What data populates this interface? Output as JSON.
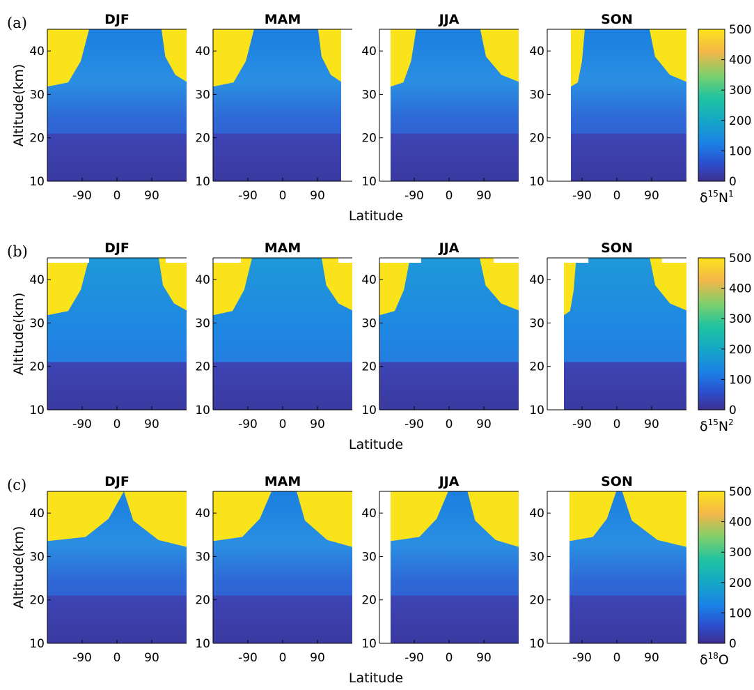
{
  "figure": {
    "colormap": [
      "#3e2f8f",
      "#2b4fd0",
      "#1a82e6",
      "#15a7c6",
      "#20c3a0",
      "#7fcf6a",
      "#f3b64a",
      "#fbe31b"
    ],
    "rows": [
      {
        "letter": "(a)",
        "ylabel": "Altitude(km)",
        "xlabel": "Latitude",
        "colorbar": {
          "ticks": [
            "500",
            "400",
            "300",
            "200",
            "100",
            "0"
          ],
          "label_base": "δ",
          "label_sup": "15",
          "label_main": "N",
          "label_sup2": "1"
        },
        "panels": [
          {
            "title": "DJF",
            "yticks": [
              "40",
              "30",
              "20",
              "10"
            ],
            "xticks": [
              "-90",
              "0",
              "90"
            ]
          },
          {
            "title": "MAM",
            "yticks": [
              "40",
              "30",
              "20",
              "10"
            ],
            "xticks": [
              "-90",
              "0",
              "90"
            ]
          },
          {
            "title": "JJA",
            "yticks": [
              "40",
              "30",
              "20",
              "10"
            ],
            "xticks": [
              "-90",
              "0",
              "90"
            ]
          },
          {
            "title": "SON",
            "yticks": [
              "40",
              "30",
              "20",
              "10"
            ],
            "xticks": [
              "-90",
              "0",
              "90"
            ]
          }
        ]
      },
      {
        "letter": "(b)",
        "ylabel": "Altitude(km)",
        "xlabel": "Latitude",
        "colorbar": {
          "ticks": [
            "500",
            "400",
            "300",
            "200",
            "100",
            "0"
          ],
          "label_base": "δ",
          "label_sup": "15",
          "label_main": "N",
          "label_sup2": "2"
        },
        "panels": [
          {
            "title": "DJF",
            "yticks": [
              "40",
              "30",
              "20",
              "10"
            ],
            "xticks": [
              "-90",
              "0",
              "90"
            ]
          },
          {
            "title": "MAM",
            "yticks": [
              "40",
              "30",
              "20",
              "10"
            ],
            "xticks": [
              "-90",
              "0",
              "90"
            ]
          },
          {
            "title": "JJA",
            "yticks": [
              "40",
              "30",
              "20",
              "10"
            ],
            "xticks": [
              "-90",
              "0",
              "90"
            ]
          },
          {
            "title": "SON",
            "yticks": [
              "40",
              "30",
              "20",
              "10"
            ],
            "xticks": [
              "-90",
              "0",
              "90"
            ]
          }
        ]
      },
      {
        "letter": "(c)",
        "ylabel": "Altitude(km)",
        "xlabel": "Latitude",
        "colorbar": {
          "ticks": [
            "500",
            "400",
            "300",
            "200",
            "100",
            "0"
          ],
          "label_base": "δ",
          "label_sup": "18",
          "label_main": "O",
          "label_sup2": ""
        },
        "panels": [
          {
            "title": "DJF",
            "yticks": [
              "40",
              "30",
              "20",
              "10"
            ],
            "xticks": [
              "-90",
              "0",
              "90"
            ]
          },
          {
            "title": "MAM",
            "yticks": [
              "40",
              "30",
              "20",
              "10"
            ],
            "xticks": [
              "-90",
              "0",
              "90"
            ]
          },
          {
            "title": "JJA",
            "yticks": [
              "40",
              "30",
              "20",
              "10"
            ],
            "xticks": [
              "-90",
              "0",
              "90"
            ]
          },
          {
            "title": "SON",
            "yticks": [
              "40",
              "30",
              "20",
              "10"
            ],
            "xticks": [
              "-90",
              "0",
              "90"
            ]
          }
        ]
      }
    ]
  },
  "chart_data": [
    {
      "type": "heatmap",
      "panel": "(a) DJF",
      "title": "DJF",
      "ylabel": "Altitude(km)",
      "xlabel": "Latitude",
      "ylim": [
        10,
        45
      ],
      "xticks": [
        -90,
        0,
        90
      ],
      "yticks": [
        10,
        20,
        30,
        40
      ],
      "colorbar_range": [
        0,
        500
      ],
      "colorbar_label": "δ15N1"
    },
    {
      "type": "heatmap",
      "panel": "(a) MAM",
      "title": "MAM",
      "ylim": [
        10,
        45
      ],
      "xticks": [
        -90,
        0,
        90
      ],
      "yticks": [
        10,
        20,
        30,
        40
      ],
      "colorbar_range": [
        0,
        500
      ],
      "colorbar_label": "δ15N1"
    },
    {
      "type": "heatmap",
      "panel": "(a) JJA",
      "title": "JJA",
      "ylim": [
        10,
        45
      ],
      "xticks": [
        -90,
        0,
        90
      ],
      "yticks": [
        10,
        20,
        30,
        40
      ],
      "colorbar_range": [
        0,
        500
      ],
      "colorbar_label": "δ15N1"
    },
    {
      "type": "heatmap",
      "panel": "(a) SON",
      "title": "SON",
      "ylim": [
        10,
        45
      ],
      "xticks": [
        -90,
        0,
        90
      ],
      "yticks": [
        10,
        20,
        30,
        40
      ],
      "colorbar_range": [
        0,
        500
      ],
      "colorbar_label": "δ15N1"
    },
    {
      "type": "heatmap",
      "panel": "(b) DJF",
      "title": "DJF",
      "ylabel": "Altitude(km)",
      "xlabel": "Latitude",
      "ylim": [
        10,
        45
      ],
      "xticks": [
        -90,
        0,
        90
      ],
      "yticks": [
        10,
        20,
        30,
        40
      ],
      "colorbar_range": [
        0,
        500
      ],
      "colorbar_label": "δ15N2"
    },
    {
      "type": "heatmap",
      "panel": "(b) MAM",
      "title": "MAM",
      "ylim": [
        10,
        45
      ],
      "xticks": [
        -90,
        0,
        90
      ],
      "yticks": [
        10,
        20,
        30,
        40
      ],
      "colorbar_range": [
        0,
        500
      ],
      "colorbar_label": "δ15N2"
    },
    {
      "type": "heatmap",
      "panel": "(b) JJA",
      "title": "JJA",
      "ylim": [
        10,
        45
      ],
      "xticks": [
        -90,
        0,
        90
      ],
      "yticks": [
        10,
        20,
        30,
        40
      ],
      "colorbar_range": [
        0,
        500
      ],
      "colorbar_label": "δ15N2"
    },
    {
      "type": "heatmap",
      "panel": "(b) SON",
      "title": "SON",
      "ylim": [
        10,
        45
      ],
      "xticks": [
        -90,
        0,
        90
      ],
      "yticks": [
        10,
        20,
        30,
        40
      ],
      "colorbar_range": [
        0,
        500
      ],
      "colorbar_label": "δ15N2"
    },
    {
      "type": "heatmap",
      "panel": "(c) DJF",
      "title": "DJF",
      "ylabel": "Altitude(km)",
      "xlabel": "Latitude",
      "ylim": [
        10,
        45
      ],
      "xticks": [
        -90,
        0,
        90
      ],
      "yticks": [
        10,
        20,
        30,
        40
      ],
      "colorbar_range": [
        0,
        500
      ],
      "colorbar_label": "δ18O"
    },
    {
      "type": "heatmap",
      "panel": "(c) MAM",
      "title": "MAM",
      "ylim": [
        10,
        45
      ],
      "xticks": [
        -90,
        0,
        90
      ],
      "yticks": [
        10,
        20,
        30,
        40
      ],
      "colorbar_range": [
        0,
        500
      ],
      "colorbar_label": "δ18O"
    },
    {
      "type": "heatmap",
      "panel": "(c) JJA",
      "title": "JJA",
      "ylim": [
        10,
        45
      ],
      "xticks": [
        -90,
        0,
        90
      ],
      "yticks": [
        10,
        20,
        30,
        40
      ],
      "colorbar_range": [
        0,
        500
      ],
      "colorbar_label": "δ18O"
    },
    {
      "type": "heatmap",
      "panel": "(c) SON",
      "title": "SON",
      "ylim": [
        10,
        45
      ],
      "xticks": [
        -90,
        0,
        90
      ],
      "yticks": [
        10,
        20,
        30,
        40
      ],
      "colorbar_range": [
        0,
        500
      ],
      "colorbar_label": "δ18O"
    }
  ]
}
